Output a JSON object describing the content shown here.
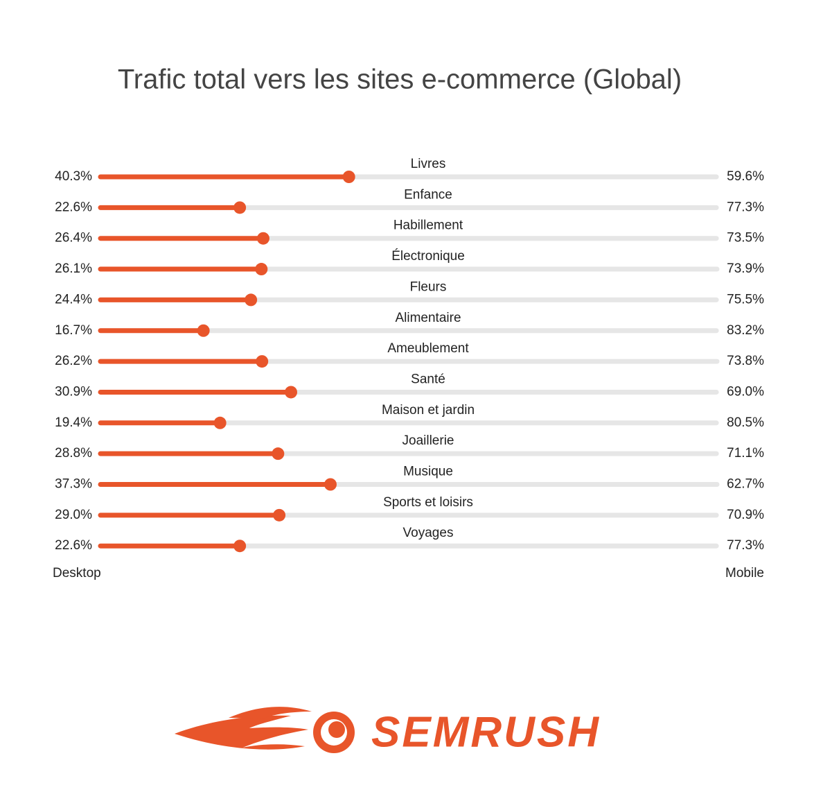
{
  "chart_data": {
    "type": "dumbbell-split",
    "title": "Trafic total vers les sites e-commerce (Global)",
    "categories": [
      "Livres",
      "Enfance",
      "Habillement",
      "Électronique",
      "Fleurs",
      "Alimentaire",
      "Ameublement",
      "Santé",
      "Maison et jardin",
      "Joaillerie",
      "Musique",
      "Sports et loisirs",
      "Voyages"
    ],
    "series": [
      {
        "name": "Desktop",
        "color": "#e8552a",
        "values": [
          40.3,
          22.6,
          26.4,
          26.1,
          24.4,
          16.7,
          26.2,
          30.9,
          19.4,
          28.8,
          37.3,
          29.0,
          22.6
        ],
        "value_labels": [
          "40.3%",
          "22.6%",
          "26.4%",
          "26.1%",
          "24.4%",
          "16.7%",
          "26.2%",
          "30.9%",
          "19.4%",
          "28.8%",
          "37.3%",
          "29.0%",
          "22.6%"
        ]
      },
      {
        "name": "Mobile",
        "color": "#e6e6e6",
        "values": [
          59.6,
          77.3,
          73.5,
          73.9,
          75.5,
          83.2,
          73.8,
          69.0,
          80.5,
          71.1,
          62.7,
          70.9,
          77.3
        ],
        "value_labels": [
          "59.6%",
          "77.3%",
          "73.5%",
          "73.9%",
          "75.5%",
          "83.2%",
          "73.8%",
          "69.0%",
          "80.5%",
          "71.1%",
          "62.7%",
          "70.9%",
          "77.3%"
        ]
      }
    ],
    "xlim": [
      0,
      100
    ]
  },
  "logo": "SEMRUSH"
}
